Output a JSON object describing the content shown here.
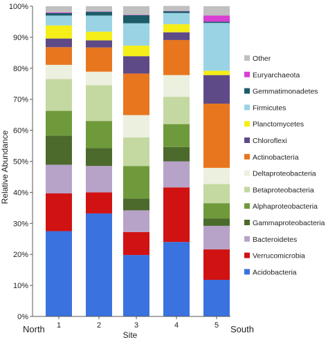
{
  "chart_data": {
    "type": "bar",
    "stacked": true,
    "categories": [
      "1",
      "2",
      "3",
      "4",
      "5"
    ],
    "xlabel": "Site",
    "ylabel": "Relative Abundance",
    "ylim": [
      0,
      100
    ],
    "y_ticks": [
      "0%",
      "10%",
      "20%",
      "30%",
      "40%",
      "50%",
      "60%",
      "70%",
      "80%",
      "90%",
      "100%"
    ],
    "end_labels": {
      "left": "North",
      "right": "South"
    },
    "legend_position": "right",
    "series": [
      {
        "name": "Acidobacteria",
        "color": "#3a72e0",
        "values": [
          27.5,
          33.2,
          19.8,
          24.0,
          11.8
        ]
      },
      {
        "name": "Verrucomicrobia",
        "color": "#d11212",
        "values": [
          12.2,
          6.8,
          7.4,
          17.6,
          9.8
        ]
      },
      {
        "name": "Bacteroidetes",
        "color": "#b7a3c8",
        "values": [
          9.2,
          8.5,
          7.0,
          8.4,
          7.6
        ]
      },
      {
        "name": "Gammaproteobacteria",
        "color": "#4c6a2c",
        "values": [
          9.4,
          5.8,
          3.8,
          4.6,
          2.4
        ]
      },
      {
        "name": "Alphaproteobacteria",
        "color": "#6f9a3b",
        "values": [
          8.0,
          8.7,
          10.5,
          7.4,
          4.9
        ]
      },
      {
        "name": "Betaproteobacteria",
        "color": "#c4d8a1",
        "values": [
          10.2,
          11.5,
          9.2,
          8.8,
          6.2
        ]
      },
      {
        "name": "Deltaproteobacteria",
        "color": "#ecf0df",
        "values": [
          4.6,
          4.4,
          7.2,
          7.0,
          5.2
        ]
      },
      {
        "name": "Actinobacteria",
        "color": "#e8761e",
        "values": [
          5.7,
          7.8,
          13.4,
          11.3,
          20.7
        ]
      },
      {
        "name": "Chloroflexi",
        "color": "#5f4a88",
        "values": [
          2.8,
          2.3,
          5.6,
          2.5,
          9.2
        ]
      },
      {
        "name": "Planctomycetes",
        "color": "#f5ee18",
        "values": [
          4.2,
          2.8,
          3.4,
          2.6,
          1.4
        ]
      },
      {
        "name": "Firmicutes",
        "color": "#99d3e4",
        "values": [
          3.2,
          5.2,
          7.2,
          3.6,
          15.4
        ]
      },
      {
        "name": "Gemmatimonadetes",
        "color": "#1c5c69",
        "values": [
          0.8,
          1.2,
          2.6,
          0.6,
          0.4
        ]
      },
      {
        "name": "Euryarchaeota",
        "color": "#d83fd2",
        "values": [
          0.2,
          0.1,
          0.1,
          0.1,
          2.0
        ]
      },
      {
        "name": "Other",
        "color": "#c0c0c0",
        "values": [
          2.0,
          1.7,
          2.8,
          1.6,
          3.0
        ]
      }
    ],
    "legend_order": [
      "Other",
      "Euryarchaeota",
      "Gemmatimonadetes",
      "Firmicutes",
      "Planctomycetes",
      "Chloroflexi",
      "Actinobacteria",
      "Deltaproteobacteria",
      "Betaproteobacteria",
      "Alphaproteobacteria",
      "Gammaproteobacteria",
      "Bacteroidetes",
      "Verrucomicrobia",
      "Acidobacteria"
    ]
  }
}
